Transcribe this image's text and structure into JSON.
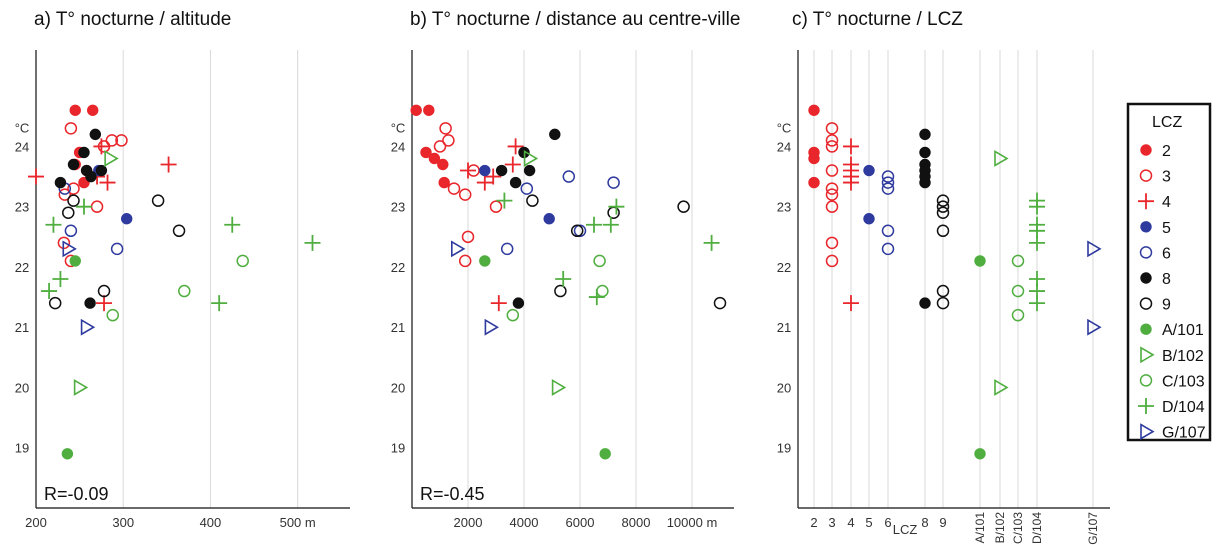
{
  "colors": {
    "lcz2": "#e8262b",
    "lcz3": "#e8262b",
    "lcz4": "#e8262b",
    "lcz5": "#2e3a9e",
    "lcz6": "#2e3a9e",
    "lcz8": "#111111",
    "lcz9": "#111111",
    "A": "#4fae3f",
    "B": "#4fae3f",
    "C": "#4fae3f",
    "D": "#4fae3f",
    "G": "#2e3a9e",
    "grid": "#d9d9d9"
  },
  "legend": {
    "title": "LCZ",
    "items": [
      {
        "key": "2",
        "label": "2",
        "marker": "filled-circle",
        "color": "#e8262b"
      },
      {
        "key": "3",
        "label": "3",
        "marker": "open-circle",
        "color": "#e8262b"
      },
      {
        "key": "4",
        "label": "4",
        "marker": "plus",
        "color": "#e8262b"
      },
      {
        "key": "5",
        "label": "5",
        "marker": "filled-circle",
        "color": "#2e3a9e"
      },
      {
        "key": "6",
        "label": "6",
        "marker": "open-circle",
        "color": "#2e3a9e"
      },
      {
        "key": "8",
        "label": "8",
        "marker": "filled-circle",
        "color": "#111111"
      },
      {
        "key": "9",
        "label": "9",
        "marker": "open-circle",
        "color": "#111111"
      },
      {
        "key": "A",
        "label": "A/101",
        "marker": "filled-circle",
        "color": "#4fae3f"
      },
      {
        "key": "B",
        "label": "B/102",
        "marker": "triangle-right",
        "color": "#4fae3f"
      },
      {
        "key": "C",
        "label": "C/103",
        "marker": "open-circle",
        "color": "#4fae3f"
      },
      {
        "key": "D",
        "label": "D/104",
        "marker": "plus",
        "color": "#4fae3f"
      },
      {
        "key": "G",
        "label": "G/107",
        "marker": "triangle-right",
        "color": "#2e3a9e"
      }
    ]
  },
  "chart_data": [
    {
      "type": "scatter",
      "title": "a) T° nocturne / altitude",
      "ylabel": "°C",
      "annotation": "R=-0.09",
      "xlim": [
        200,
        560
      ],
      "ylim": [
        18,
        25.6
      ],
      "xticks": [
        200,
        300,
        400,
        500
      ],
      "xtick_labels": [
        "200",
        "300",
        "400",
        "500 m"
      ],
      "yticks": [
        19,
        20,
        21,
        22,
        23,
        24
      ],
      "ytick_labels": [
        "19",
        "20",
        "21",
        "22",
        "23",
        "24"
      ],
      "points": [
        {
          "x": 245,
          "y": 24.6,
          "lcz": "2"
        },
        {
          "x": 265,
          "y": 24.6,
          "lcz": "2"
        },
        {
          "x": 245,
          "y": 23.7,
          "lcz": "2"
        },
        {
          "x": 250,
          "y": 23.9,
          "lcz": "2"
        },
        {
          "x": 258,
          "y": 23.6,
          "lcz": "2"
        },
        {
          "x": 255,
          "y": 23.4,
          "lcz": "2"
        },
        {
          "x": 240,
          "y": 24.3,
          "lcz": "3"
        },
        {
          "x": 278,
          "y": 24.0,
          "lcz": "3"
        },
        {
          "x": 287,
          "y": 24.1,
          "lcz": "3"
        },
        {
          "x": 298,
          "y": 24.1,
          "lcz": "3"
        },
        {
          "x": 243,
          "y": 23.3,
          "lcz": "3"
        },
        {
          "x": 233,
          "y": 23.2,
          "lcz": "3"
        },
        {
          "x": 232,
          "y": 22.4,
          "lcz": "3"
        },
        {
          "x": 240,
          "y": 22.1,
          "lcz": "3"
        },
        {
          "x": 270,
          "y": 23.0,
          "lcz": "3"
        },
        {
          "x": 200,
          "y": 23.5,
          "lcz": "4"
        },
        {
          "x": 270,
          "y": 23.5,
          "lcz": "4"
        },
        {
          "x": 282,
          "y": 23.4,
          "lcz": "4"
        },
        {
          "x": 275,
          "y": 24.0,
          "lcz": "4"
        },
        {
          "x": 352,
          "y": 23.7,
          "lcz": "4"
        },
        {
          "x": 278,
          "y": 21.4,
          "lcz": "4"
        },
        {
          "x": 272,
          "y": 23.6,
          "lcz": "5"
        },
        {
          "x": 304,
          "y": 22.8,
          "lcz": "5"
        },
        {
          "x": 233,
          "y": 23.3,
          "lcz": "6"
        },
        {
          "x": 240,
          "y": 22.6,
          "lcz": "6"
        },
        {
          "x": 293,
          "y": 22.3,
          "lcz": "6"
        },
        {
          "x": 228,
          "y": 23.4,
          "lcz": "8"
        },
        {
          "x": 243,
          "y": 23.7,
          "lcz": "8"
        },
        {
          "x": 255,
          "y": 23.9,
          "lcz": "8"
        },
        {
          "x": 263,
          "y": 23.5,
          "lcz": "8"
        },
        {
          "x": 268,
          "y": 24.2,
          "lcz": "8"
        },
        {
          "x": 275,
          "y": 23.6,
          "lcz": "8"
        },
        {
          "x": 262,
          "y": 21.4,
          "lcz": "8"
        },
        {
          "x": 258,
          "y": 23.6,
          "lcz": "8"
        },
        {
          "x": 222,
          "y": 21.4,
          "lcz": "9"
        },
        {
          "x": 237,
          "y": 22.9,
          "lcz": "9"
        },
        {
          "x": 243,
          "y": 23.1,
          "lcz": "9"
        },
        {
          "x": 278,
          "y": 21.6,
          "lcz": "9"
        },
        {
          "x": 340,
          "y": 23.1,
          "lcz": "9"
        },
        {
          "x": 364,
          "y": 22.6,
          "lcz": "9"
        },
        {
          "x": 245,
          "y": 22.1,
          "lcz": "A"
        },
        {
          "x": 236,
          "y": 18.9,
          "lcz": "A"
        },
        {
          "x": 285,
          "y": 23.8,
          "lcz": "B"
        },
        {
          "x": 250,
          "y": 20.0,
          "lcz": "B"
        },
        {
          "x": 288,
          "y": 21.2,
          "lcz": "C"
        },
        {
          "x": 370,
          "y": 21.6,
          "lcz": "C"
        },
        {
          "x": 437,
          "y": 22.1,
          "lcz": "C"
        },
        {
          "x": 220,
          "y": 22.7,
          "lcz": "D"
        },
        {
          "x": 228,
          "y": 21.8,
          "lcz": "D"
        },
        {
          "x": 215,
          "y": 21.6,
          "lcz": "D"
        },
        {
          "x": 255,
          "y": 23.0,
          "lcz": "D"
        },
        {
          "x": 425,
          "y": 22.7,
          "lcz": "D"
        },
        {
          "x": 410,
          "y": 21.4,
          "lcz": "D"
        },
        {
          "x": 517,
          "y": 22.4,
          "lcz": "D"
        },
        {
          "x": 237,
          "y": 22.3,
          "lcz": "G"
        },
        {
          "x": 258,
          "y": 21.0,
          "lcz": "G"
        }
      ]
    },
    {
      "type": "scatter",
      "title": "b) T° nocturne / distance au centre-ville",
      "ylabel": "°C",
      "annotation": "R=-0.45",
      "xlim": [
        0,
        11500
      ],
      "ylim": [
        18,
        25.6
      ],
      "xticks": [
        2000,
        4000,
        6000,
        8000,
        10000
      ],
      "xtick_labels": [
        "2000",
        "4000",
        "6000",
        "8000",
        "10000 m"
      ],
      "yticks": [
        19,
        20,
        21,
        22,
        23,
        24
      ],
      "ytick_labels": [
        "19",
        "20",
        "21",
        "22",
        "23",
        "24"
      ],
      "points": [
        {
          "x": 150,
          "y": 24.6,
          "lcz": "2"
        },
        {
          "x": 600,
          "y": 24.6,
          "lcz": "2"
        },
        {
          "x": 500,
          "y": 23.9,
          "lcz": "2"
        },
        {
          "x": 800,
          "y": 23.8,
          "lcz": "2"
        },
        {
          "x": 1100,
          "y": 23.7,
          "lcz": "2"
        },
        {
          "x": 1150,
          "y": 23.4,
          "lcz": "2"
        },
        {
          "x": 1200,
          "y": 24.3,
          "lcz": "3"
        },
        {
          "x": 1000,
          "y": 24.0,
          "lcz": "3"
        },
        {
          "x": 1300,
          "y": 24.1,
          "lcz": "3"
        },
        {
          "x": 1500,
          "y": 23.3,
          "lcz": "3"
        },
        {
          "x": 1900,
          "y": 23.2,
          "lcz": "3"
        },
        {
          "x": 2000,
          "y": 22.5,
          "lcz": "3"
        },
        {
          "x": 1900,
          "y": 22.1,
          "lcz": "3"
        },
        {
          "x": 2200,
          "y": 23.6,
          "lcz": "3"
        },
        {
          "x": 3000,
          "y": 23.0,
          "lcz": "3"
        },
        {
          "x": 2000,
          "y": 23.6,
          "lcz": "4"
        },
        {
          "x": 2600,
          "y": 23.4,
          "lcz": "4"
        },
        {
          "x": 3600,
          "y": 23.7,
          "lcz": "4"
        },
        {
          "x": 3700,
          "y": 24.0,
          "lcz": "4"
        },
        {
          "x": 3100,
          "y": 21.4,
          "lcz": "4"
        },
        {
          "x": 2900,
          "y": 23.5,
          "lcz": "4"
        },
        {
          "x": 2600,
          "y": 23.6,
          "lcz": "5"
        },
        {
          "x": 4900,
          "y": 22.8,
          "lcz": "5"
        },
        {
          "x": 4100,
          "y": 23.3,
          "lcz": "6"
        },
        {
          "x": 5600,
          "y": 23.5,
          "lcz": "6"
        },
        {
          "x": 7200,
          "y": 23.4,
          "lcz": "6"
        },
        {
          "x": 6000,
          "y": 22.6,
          "lcz": "6"
        },
        {
          "x": 3400,
          "y": 22.3,
          "lcz": "6"
        },
        {
          "x": 3200,
          "y": 23.6,
          "lcz": "8"
        },
        {
          "x": 3700,
          "y": 23.4,
          "lcz": "8"
        },
        {
          "x": 4000,
          "y": 23.9,
          "lcz": "8"
        },
        {
          "x": 4200,
          "y": 23.6,
          "lcz": "8"
        },
        {
          "x": 5100,
          "y": 24.2,
          "lcz": "8"
        },
        {
          "x": 3800,
          "y": 21.4,
          "lcz": "8"
        },
        {
          "x": 4300,
          "y": 23.1,
          "lcz": "9"
        },
        {
          "x": 5300,
          "y": 21.6,
          "lcz": "9"
        },
        {
          "x": 5900,
          "y": 22.6,
          "lcz": "9"
        },
        {
          "x": 7200,
          "y": 22.9,
          "lcz": "9"
        },
        {
          "x": 9700,
          "y": 23.0,
          "lcz": "9"
        },
        {
          "x": 11000,
          "y": 21.4,
          "lcz": "9"
        },
        {
          "x": 2600,
          "y": 22.1,
          "lcz": "A"
        },
        {
          "x": 6900,
          "y": 18.9,
          "lcz": "A"
        },
        {
          "x": 4200,
          "y": 23.8,
          "lcz": "B"
        },
        {
          "x": 5200,
          "y": 20.0,
          "lcz": "B"
        },
        {
          "x": 3600,
          "y": 21.2,
          "lcz": "C"
        },
        {
          "x": 6700,
          "y": 22.1,
          "lcz": "C"
        },
        {
          "x": 6800,
          "y": 21.6,
          "lcz": "C"
        },
        {
          "x": 3300,
          "y": 23.1,
          "lcz": "D"
        },
        {
          "x": 5400,
          "y": 21.8,
          "lcz": "D"
        },
        {
          "x": 6600,
          "y": 21.5,
          "lcz": "D"
        },
        {
          "x": 6500,
          "y": 22.7,
          "lcz": "D"
        },
        {
          "x": 7100,
          "y": 22.7,
          "lcz": "D"
        },
        {
          "x": 7300,
          "y": 23.0,
          "lcz": "D"
        },
        {
          "x": 10700,
          "y": 22.4,
          "lcz": "D"
        },
        {
          "x": 1600,
          "y": 22.3,
          "lcz": "G"
        },
        {
          "x": 2800,
          "y": 21.0,
          "lcz": "G"
        }
      ]
    },
    {
      "type": "scatter",
      "title": "c) T° nocturne / LCZ",
      "ylabel": "°C",
      "xlabel": "LCZ",
      "ylim": [
        18,
        25.6
      ],
      "categories": [
        "2",
        "3",
        "4",
        "5",
        "6",
        "8",
        "9",
        "A/101",
        "B/102",
        "C/103",
        "D/104",
        "G/107"
      ],
      "yticks": [
        19,
        20,
        21,
        22,
        23,
        24
      ],
      "ytick_labels": [
        "19",
        "20",
        "21",
        "22",
        "23",
        "24"
      ],
      "points": [
        {
          "cat": "2",
          "y": 24.6,
          "lcz": "2"
        },
        {
          "cat": "2",
          "y": 23.9,
          "lcz": "2"
        },
        {
          "cat": "2",
          "y": 23.8,
          "lcz": "2"
        },
        {
          "cat": "2",
          "y": 23.4,
          "lcz": "2"
        },
        {
          "cat": "3",
          "y": 24.3,
          "lcz": "3"
        },
        {
          "cat": "3",
          "y": 24.1,
          "lcz": "3"
        },
        {
          "cat": "3",
          "y": 24.0,
          "lcz": "3"
        },
        {
          "cat": "3",
          "y": 23.6,
          "lcz": "3"
        },
        {
          "cat": "3",
          "y": 23.3,
          "lcz": "3"
        },
        {
          "cat": "3",
          "y": 23.2,
          "lcz": "3"
        },
        {
          "cat": "3",
          "y": 23.0,
          "lcz": "3"
        },
        {
          "cat": "3",
          "y": 22.4,
          "lcz": "3"
        },
        {
          "cat": "3",
          "y": 22.1,
          "lcz": "3"
        },
        {
          "cat": "4",
          "y": 24.0,
          "lcz": "4"
        },
        {
          "cat": "4",
          "y": 23.7,
          "lcz": "4"
        },
        {
          "cat": "4",
          "y": 23.6,
          "lcz": "4"
        },
        {
          "cat": "4",
          "y": 23.5,
          "lcz": "4"
        },
        {
          "cat": "4",
          "y": 23.4,
          "lcz": "4"
        },
        {
          "cat": "4",
          "y": 21.4,
          "lcz": "4"
        },
        {
          "cat": "5",
          "y": 23.6,
          "lcz": "5"
        },
        {
          "cat": "5",
          "y": 22.8,
          "lcz": "5"
        },
        {
          "cat": "6",
          "y": 23.5,
          "lcz": "6"
        },
        {
          "cat": "6",
          "y": 23.4,
          "lcz": "6"
        },
        {
          "cat": "6",
          "y": 23.3,
          "lcz": "6"
        },
        {
          "cat": "6",
          "y": 22.6,
          "lcz": "6"
        },
        {
          "cat": "6",
          "y": 22.3,
          "lcz": "6"
        },
        {
          "cat": "8",
          "y": 24.2,
          "lcz": "8"
        },
        {
          "cat": "8",
          "y": 23.9,
          "lcz": "8"
        },
        {
          "cat": "8",
          "y": 23.7,
          "lcz": "8"
        },
        {
          "cat": "8",
          "y": 23.6,
          "lcz": "8"
        },
        {
          "cat": "8",
          "y": 23.5,
          "lcz": "8"
        },
        {
          "cat": "8",
          "y": 23.4,
          "lcz": "8"
        },
        {
          "cat": "8",
          "y": 21.4,
          "lcz": "8"
        },
        {
          "cat": "9",
          "y": 23.1,
          "lcz": "9"
        },
        {
          "cat": "9",
          "y": 23.0,
          "lcz": "9"
        },
        {
          "cat": "9",
          "y": 22.9,
          "lcz": "9"
        },
        {
          "cat": "9",
          "y": 22.6,
          "lcz": "9"
        },
        {
          "cat": "9",
          "y": 21.6,
          "lcz": "9"
        },
        {
          "cat": "9",
          "y": 21.4,
          "lcz": "9"
        },
        {
          "cat": "A/101",
          "y": 22.1,
          "lcz": "A"
        },
        {
          "cat": "A/101",
          "y": 18.9,
          "lcz": "A"
        },
        {
          "cat": "B/102",
          "y": 23.8,
          "lcz": "B"
        },
        {
          "cat": "B/102",
          "y": 20.0,
          "lcz": "B"
        },
        {
          "cat": "C/103",
          "y": 22.1,
          "lcz": "C"
        },
        {
          "cat": "C/103",
          "y": 21.6,
          "lcz": "C"
        },
        {
          "cat": "C/103",
          "y": 21.2,
          "lcz": "C"
        },
        {
          "cat": "D/104",
          "y": 23.1,
          "lcz": "D"
        },
        {
          "cat": "D/104",
          "y": 23.0,
          "lcz": "D"
        },
        {
          "cat": "D/104",
          "y": 22.7,
          "lcz": "D"
        },
        {
          "cat": "D/104",
          "y": 22.6,
          "lcz": "D"
        },
        {
          "cat": "D/104",
          "y": 22.4,
          "lcz": "D"
        },
        {
          "cat": "D/104",
          "y": 21.8,
          "lcz": "D"
        },
        {
          "cat": "D/104",
          "y": 21.6,
          "lcz": "D"
        },
        {
          "cat": "D/104",
          "y": 21.4,
          "lcz": "D"
        },
        {
          "cat": "G/107",
          "y": 22.3,
          "lcz": "G"
        },
        {
          "cat": "G/107",
          "y": 21.0,
          "lcz": "G"
        }
      ]
    }
  ]
}
